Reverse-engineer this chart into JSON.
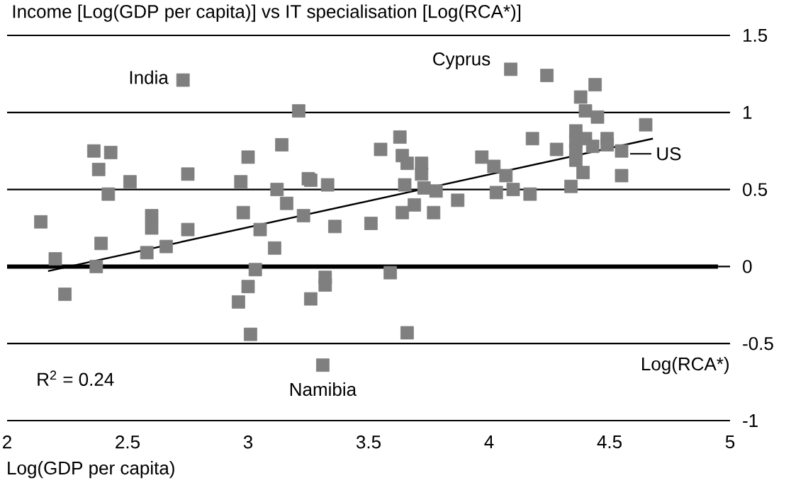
{
  "chart_data": {
    "type": "scatter",
    "title": "Income [Log(GDP per capita)] vs IT specialisation [Log(RCA*)]",
    "xlabel": "Log(GDP per capita)",
    "ylabel": "Log(RCA*)",
    "xlim": [
      2,
      5
    ],
    "ylim": [
      -1,
      1.5
    ],
    "xticks": [
      2,
      2.5,
      3,
      3.5,
      4,
      4.5,
      5
    ],
    "yticks": [
      -1,
      -0.5,
      0,
      0.5,
      1,
      1.5
    ],
    "grid": "y",
    "series": [
      {
        "color": "#7f7f7f",
        "marker": "square",
        "x": [
          2.73,
          4.09,
          4.24,
          4.44,
          4.38,
          4.4,
          4.45,
          2.14,
          2.2,
          2.24,
          2.36,
          2.43,
          2.38,
          2.42,
          2.51,
          2.39,
          2.37,
          2.6,
          2.6,
          2.58,
          2.66,
          2.75,
          2.75,
          2.98,
          2.97,
          3.0,
          3.05,
          3.11,
          3.03,
          3.0,
          2.96,
          3.01,
          3.14,
          3.21,
          3.16,
          3.12,
          3.23,
          3.25,
          3.26,
          3.33,
          3.36,
          3.26,
          3.32,
          3.32,
          3.31,
          3.51,
          3.55,
          3.59,
          3.66,
          3.63,
          3.64,
          3.66,
          3.72,
          3.72,
          3.65,
          3.73,
          3.78,
          3.69,
          3.64,
          3.77,
          3.87,
          4.18,
          3.97,
          4.02,
          4.07,
          4.03,
          4.1,
          4.17,
          4.28,
          4.34,
          4.36,
          4.36,
          4.36,
          4.36,
          4.39,
          4.4,
          4.43,
          4.49,
          4.49,
          4.55,
          4.55,
          4.65
        ],
        "values": [
          1.21,
          1.28,
          1.24,
          1.18,
          1.1,
          1.01,
          0.97,
          0.29,
          0.05,
          -0.18,
          0.75,
          0.74,
          0.63,
          0.47,
          0.55,
          0.15,
          0.0,
          0.33,
          0.25,
          0.09,
          0.13,
          0.6,
          0.24,
          0.35,
          0.55,
          0.71,
          0.24,
          0.12,
          -0.02,
          -0.13,
          -0.23,
          -0.44,
          0.79,
          1.01,
          0.41,
          0.5,
          0.33,
          0.57,
          0.56,
          0.53,
          0.26,
          -0.21,
          -0.12,
          -0.07,
          -0.64,
          0.28,
          0.76,
          -0.04,
          -0.43,
          0.84,
          0.72,
          0.67,
          0.67,
          0.6,
          0.53,
          0.51,
          0.49,
          0.4,
          0.35,
          0.35,
          0.43,
          0.83,
          0.71,
          0.65,
          0.59,
          0.48,
          0.5,
          0.47,
          0.76,
          0.52,
          0.88,
          0.81,
          0.75,
          0.69,
          0.61,
          0.83,
          0.78,
          0.83,
          0.79,
          0.75,
          0.59,
          0.92
        ]
      },
      {
        "type": "line",
        "marker": "none",
        "color": "#000000",
        "x": [
          2.17,
          4.68
        ],
        "values": [
          -0.03,
          0.83
        ]
      }
    ],
    "ref_lines": [
      {
        "axis": "y",
        "value": 0,
        "label": null,
        "color": "#000000"
      }
    ],
    "annotations": [
      {
        "text": "India",
        "x": 2.73,
        "y": 1.21
      },
      {
        "text": "Cyprus",
        "x": 4.09,
        "y": 1.28
      },
      {
        "text": "US",
        "x": 4.55,
        "y": 0.75
      },
      {
        "text": "Namibia",
        "x": 3.31,
        "y": -0.64
      },
      "R$^{2}$ = 0.24"
    ]
  }
}
